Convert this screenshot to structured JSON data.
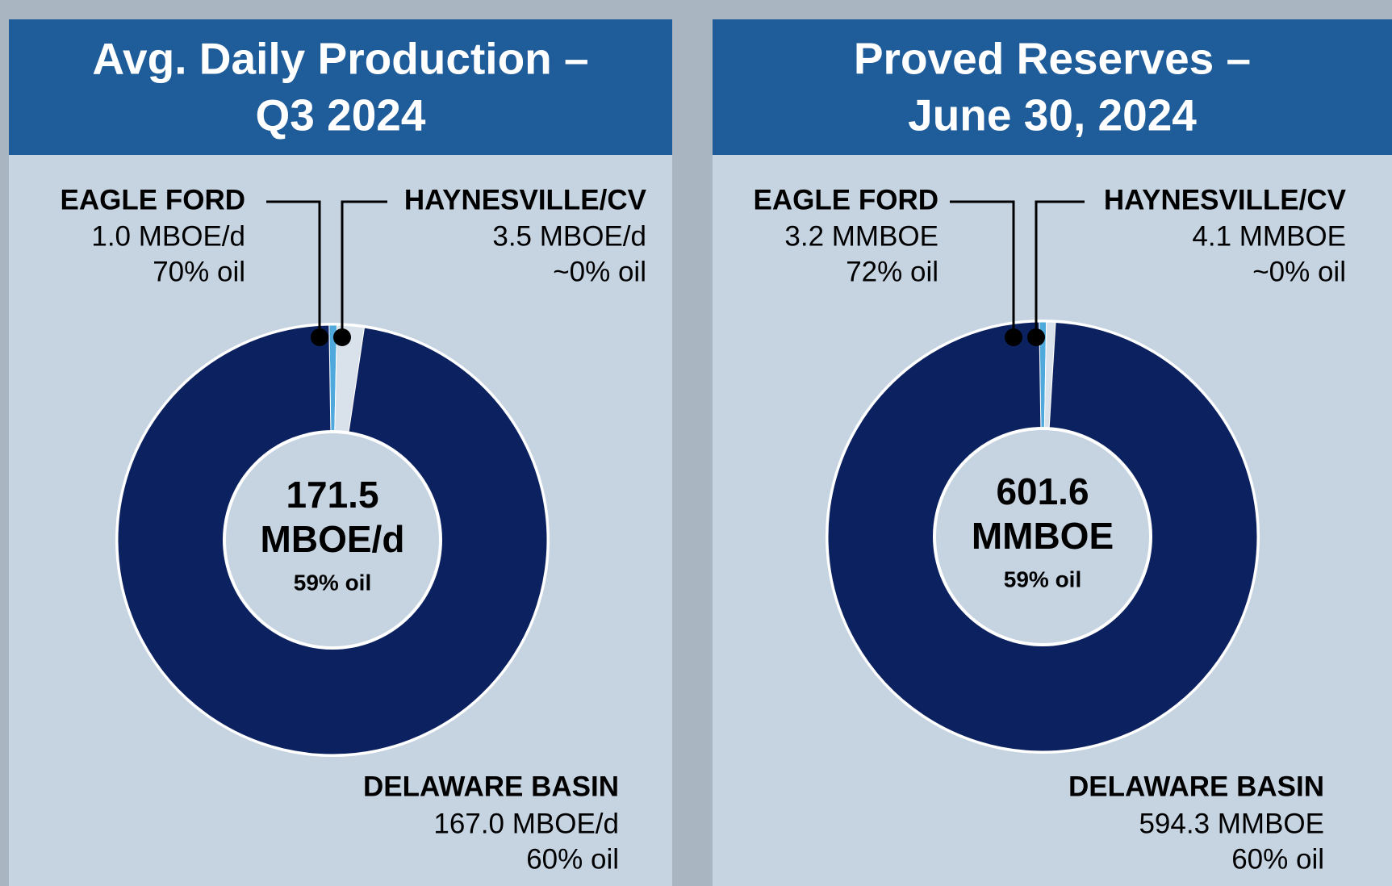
{
  "chart_data": [
    {
      "type": "pie",
      "donut": true,
      "title": [
        "Avg. Daily Production –",
        "Q3 2024"
      ],
      "categories": [
        "EAGLE FORD",
        "HAYNESVILLE/CV",
        "DELAWARE BASIN"
      ],
      "values": [
        1.0,
        3.5,
        167.0
      ],
      "value_labels": [
        "1.0 MBOE/d",
        "3.5 MBOE/d",
        "167.0 MBOE/d"
      ],
      "notes": [
        "70% oil",
        "~0% oil",
        "60% oil"
      ],
      "colors": [
        "#4fa9dc",
        "#d9e1ea",
        "#0c2260"
      ],
      "total": 171.5,
      "total_unit": "MBOE/d",
      "total_note": "59% oil"
    },
    {
      "type": "pie",
      "donut": true,
      "title": [
        "Proved Reserves –",
        "June 30, 2024"
      ],
      "categories": [
        "EAGLE FORD",
        "HAYNESVILLE/CV",
        "DELAWARE BASIN"
      ],
      "values": [
        3.2,
        4.1,
        594.3
      ],
      "value_labels": [
        "3.2 MMBOE",
        "4.1 MMBOE",
        "594.3 MMBOE"
      ],
      "notes": [
        "72% oil",
        "~0% oil",
        "60% oil"
      ],
      "colors": [
        "#4fa9dc",
        "#d9e1ea",
        "#0c2260"
      ],
      "total": 601.6,
      "total_unit": "MMBOE",
      "total_note": "59% oil"
    }
  ]
}
